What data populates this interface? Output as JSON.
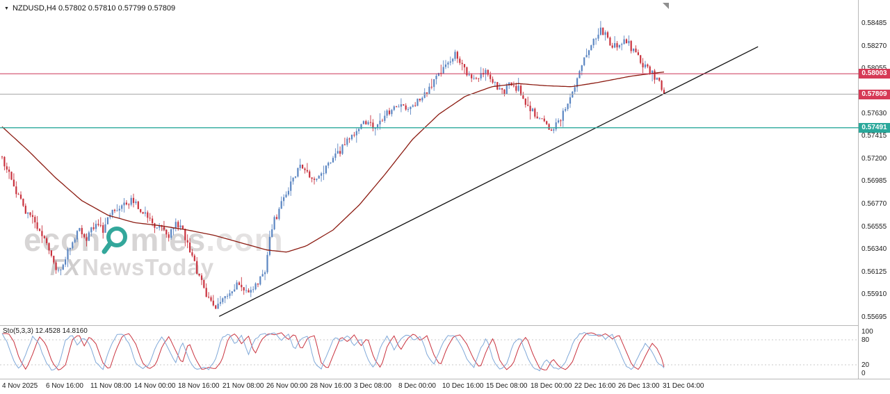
{
  "symbol_info": {
    "text": "NZDUSD,H4 0.57802 0.57810 0.57799 0.57809"
  },
  "indicator_label": "Sto(5,3,3) 12.4528 14.8160",
  "watermark": {
    "line1_pre": "econ",
    "line1_post": "mies",
    "line1_suffix": ".com",
    "line2_pre": "FX",
    "line2_post": "NewsToday",
    "magnifier_color": "#33a79b"
  },
  "price_axis": {
    "labels": [
      {
        "text": "0.58485",
        "value": 0.58485
      },
      {
        "text": "0.58270",
        "value": 0.5827
      },
      {
        "text": "0.58055",
        "value": 0.58055
      },
      {
        "text": "0.57630",
        "value": 0.5763
      },
      {
        "text": "0.57415",
        "value": 0.57415
      },
      {
        "text": "0.57200",
        "value": 0.572
      },
      {
        "text": "0.56985",
        "value": 0.56985
      },
      {
        "text": "0.56770",
        "value": 0.5677
      },
      {
        "text": "0.56555",
        "value": 0.56555
      },
      {
        "text": "0.56340",
        "value": 0.5634
      },
      {
        "text": "0.56125",
        "value": 0.56125
      },
      {
        "text": "0.55910",
        "value": 0.5591
      },
      {
        "text": "0.55695",
        "value": 0.55695
      }
    ],
    "badges": [
      {
        "text": "0.58003",
        "value": 0.58003,
        "color": "#d63a56"
      },
      {
        "text": "0.57809",
        "value": 0.57809,
        "color": "#d63a56"
      },
      {
        "text": "0.57491",
        "value": 0.57491,
        "color": "#2aa89b"
      }
    ]
  },
  "sto_axis_labels": [
    {
      "text": "100",
      "value": 100
    },
    {
      "text": "80",
      "value": 80
    },
    {
      "text": "20",
      "value": 20
    },
    {
      "text": "0",
      "value": 0
    }
  ],
  "time_axis": {
    "labels": [
      "4 Nov 2025",
      "6 Nov 16:00",
      "11 Nov 08:00",
      "14 Nov 00:00",
      "18 Nov 16:00",
      "21 Nov 08:00",
      "26 Nov 00:00",
      "28 Nov 16:00",
      "3 Dec 08:00",
      "8 Dec 00:00",
      "10 Dec 16:00",
      "15 Dec 08:00",
      "18 Dec 00:00",
      "22 Dec 16:00",
      "26 Dec 13:00",
      "31 Dec 04:00"
    ]
  },
  "chart_data": {
    "type": "candlestick",
    "title": "NZDUSD,H4",
    "open": 0.57802,
    "high": 0.5781,
    "low": 0.57799,
    "close": 0.57809,
    "ylim": [
      0.55603,
      0.58703
    ],
    "bars": 283,
    "colors": {
      "up": "#5b86c2",
      "down": "#c9323e",
      "ma": "#8b1a10",
      "trendline": "#111111"
    },
    "price_path_anchors": [
      [
        0.0,
        0.5718
      ],
      [
        0.01,
        0.5706
      ],
      [
        0.022,
        0.5688
      ],
      [
        0.035,
        0.5668
      ],
      [
        0.048,
        0.566
      ],
      [
        0.06,
        0.5648
      ],
      [
        0.072,
        0.563
      ],
      [
        0.082,
        0.5612
      ],
      [
        0.092,
        0.562
      ],
      [
        0.103,
        0.5638
      ],
      [
        0.115,
        0.5652
      ],
      [
        0.128,
        0.5645
      ],
      [
        0.14,
        0.5658
      ],
      [
        0.152,
        0.5652
      ],
      [
        0.165,
        0.5668
      ],
      [
        0.18,
        0.5675
      ],
      [
        0.195,
        0.568
      ],
      [
        0.21,
        0.5672
      ],
      [
        0.225,
        0.566
      ],
      [
        0.24,
        0.5652
      ],
      [
        0.252,
        0.5648
      ],
      [
        0.262,
        0.566
      ],
      [
        0.272,
        0.5652
      ],
      [
        0.285,
        0.563
      ],
      [
        0.298,
        0.5606
      ],
      [
        0.31,
        0.559
      ],
      [
        0.322,
        0.5576
      ],
      [
        0.335,
        0.5585
      ],
      [
        0.348,
        0.5596
      ],
      [
        0.36,
        0.5601
      ],
      [
        0.372,
        0.5594
      ],
      [
        0.385,
        0.56
      ],
      [
        0.398,
        0.5612
      ],
      [
        0.405,
        0.5652
      ],
      [
        0.415,
        0.5666
      ],
      [
        0.428,
        0.5685
      ],
      [
        0.44,
        0.5703
      ],
      [
        0.452,
        0.5715
      ],
      [
        0.462,
        0.5706
      ],
      [
        0.472,
        0.5696
      ],
      [
        0.485,
        0.5706
      ],
      [
        0.498,
        0.5718
      ],
      [
        0.512,
        0.5728
      ],
      [
        0.525,
        0.574
      ],
      [
        0.538,
        0.575
      ],
      [
        0.55,
        0.5756
      ],
      [
        0.562,
        0.5747
      ],
      [
        0.575,
        0.5758
      ],
      [
        0.588,
        0.5766
      ],
      [
        0.6,
        0.5772
      ],
      [
        0.612,
        0.5763
      ],
      [
        0.625,
        0.5773
      ],
      [
        0.638,
        0.5782
      ],
      [
        0.65,
        0.579
      ],
      [
        0.662,
        0.58
      ],
      [
        0.674,
        0.5812
      ],
      [
        0.685,
        0.582
      ],
      [
        0.695,
        0.581
      ],
      [
        0.706,
        0.5798
      ],
      [
        0.718,
        0.5794
      ],
      [
        0.73,
        0.5806
      ],
      [
        0.742,
        0.5794
      ],
      [
        0.755,
        0.5782
      ],
      [
        0.768,
        0.579
      ],
      [
        0.78,
        0.5786
      ],
      [
        0.792,
        0.5772
      ],
      [
        0.805,
        0.5763
      ],
      [
        0.818,
        0.5754
      ],
      [
        0.83,
        0.5747
      ],
      [
        0.842,
        0.5756
      ],
      [
        0.855,
        0.5772
      ],
      [
        0.868,
        0.5792
      ],
      [
        0.88,
        0.5815
      ],
      [
        0.892,
        0.5832
      ],
      [
        0.905,
        0.5843
      ],
      [
        0.918,
        0.583
      ],
      [
        0.93,
        0.5824
      ],
      [
        0.942,
        0.5833
      ],
      [
        0.955,
        0.582
      ],
      [
        0.968,
        0.5809
      ],
      [
        0.98,
        0.5802
      ],
      [
        0.99,
        0.5795
      ],
      [
        1.0,
        0.5781
      ]
    ],
    "ma_anchors": [
      [
        0.0,
        0.575
      ],
      [
        0.04,
        0.5727
      ],
      [
        0.08,
        0.5702
      ],
      [
        0.12,
        0.568
      ],
      [
        0.16,
        0.5666
      ],
      [
        0.2,
        0.5659
      ],
      [
        0.24,
        0.5656
      ],
      [
        0.28,
        0.5652
      ],
      [
        0.32,
        0.5647
      ],
      [
        0.36,
        0.564
      ],
      [
        0.4,
        0.5633
      ],
      [
        0.43,
        0.5631
      ],
      [
        0.46,
        0.5637
      ],
      [
        0.5,
        0.5652
      ],
      [
        0.54,
        0.5676
      ],
      [
        0.58,
        0.5706
      ],
      [
        0.62,
        0.5738
      ],
      [
        0.66,
        0.5762
      ],
      [
        0.7,
        0.5779
      ],
      [
        0.74,
        0.5788
      ],
      [
        0.78,
        0.5791
      ],
      [
        0.82,
        0.5789
      ],
      [
        0.86,
        0.5788
      ],
      [
        0.9,
        0.5792
      ],
      [
        0.95,
        0.5798
      ],
      [
        1.0,
        0.5802
      ]
    ],
    "trendline": {
      "x1_frac": 0.255,
      "price1": 0.557,
      "x2_frac": 0.882,
      "price2": 0.5826
    },
    "hlines": [
      {
        "price": 0.58003,
        "color": "#cc3355",
        "width": 1
      },
      {
        "price": 0.57491,
        "color": "#2aa89b",
        "width": 1.4
      },
      {
        "price": 0.57809,
        "color": "#a8a8a8",
        "width": 1
      }
    ],
    "stochastic": {
      "name": "Sto(5,3,3)",
      "main_value": 12.4528,
      "signal_value": 14.816,
      "range": [
        0,
        100
      ],
      "levels": [
        80,
        20
      ],
      "main_color": "#7fa8d8",
      "signal_color": "#c9323e",
      "anchors": [
        [
          0.0,
          95
        ],
        [
          0.008,
          75
        ],
        [
          0.016,
          35
        ],
        [
          0.026,
          8
        ],
        [
          0.036,
          45
        ],
        [
          0.046,
          88
        ],
        [
          0.056,
          70
        ],
        [
          0.066,
          25
        ],
        [
          0.076,
          6
        ],
        [
          0.086,
          20
        ],
        [
          0.096,
          80
        ],
        [
          0.106,
          93
        ],
        [
          0.114,
          65
        ],
        [
          0.122,
          88
        ],
        [
          0.132,
          70
        ],
        [
          0.142,
          25
        ],
        [
          0.152,
          8
        ],
        [
          0.162,
          55
        ],
        [
          0.172,
          90
        ],
        [
          0.182,
          95
        ],
        [
          0.192,
          70
        ],
        [
          0.202,
          25
        ],
        [
          0.212,
          10
        ],
        [
          0.222,
          20
        ],
        [
          0.232,
          65
        ],
        [
          0.242,
          88
        ],
        [
          0.252,
          55
        ],
        [
          0.262,
          22
        ],
        [
          0.272,
          75
        ],
        [
          0.282,
          35
        ],
        [
          0.292,
          8
        ],
        [
          0.302,
          14
        ],
        [
          0.312,
          10
        ],
        [
          0.322,
          30
        ],
        [
          0.332,
          85
        ],
        [
          0.342,
          95
        ],
        [
          0.352,
          70
        ],
        [
          0.362,
          90
        ],
        [
          0.372,
          45
        ],
        [
          0.382,
          80
        ],
        [
          0.392,
          95
        ],
        [
          0.402,
          92
        ],
        [
          0.412,
          97
        ],
        [
          0.422,
          80
        ],
        [
          0.432,
          95
        ],
        [
          0.442,
          55
        ],
        [
          0.452,
          85
        ],
        [
          0.462,
          90
        ],
        [
          0.472,
          25
        ],
        [
          0.482,
          10
        ],
        [
          0.492,
          50
        ],
        [
          0.502,
          88
        ],
        [
          0.512,
          75
        ],
        [
          0.522,
          92
        ],
        [
          0.532,
          65
        ],
        [
          0.542,
          85
        ],
        [
          0.552,
          35
        ],
        [
          0.562,
          12
        ],
        [
          0.572,
          65
        ],
        [
          0.582,
          90
        ],
        [
          0.592,
          55
        ],
        [
          0.602,
          82
        ],
        [
          0.612,
          95
        ],
        [
          0.622,
          78
        ],
        [
          0.632,
          90
        ],
        [
          0.642,
          45
        ],
        [
          0.652,
          18
        ],
        [
          0.662,
          60
        ],
        [
          0.672,
          88
        ],
        [
          0.682,
          92
        ],
        [
          0.692,
          70
        ],
        [
          0.702,
          35
        ],
        [
          0.712,
          12
        ],
        [
          0.722,
          55
        ],
        [
          0.732,
          85
        ],
        [
          0.742,
          30
        ],
        [
          0.752,
          8
        ],
        [
          0.762,
          22
        ],
        [
          0.772,
          68
        ],
        [
          0.782,
          88
        ],
        [
          0.792,
          45
        ],
        [
          0.802,
          12
        ],
        [
          0.812,
          6
        ],
        [
          0.822,
          35
        ],
        [
          0.832,
          15
        ],
        [
          0.842,
          8
        ],
        [
          0.852,
          28
        ],
        [
          0.862,
          72
        ],
        [
          0.872,
          95
        ],
        [
          0.882,
          97
        ],
        [
          0.892,
          88
        ],
        [
          0.902,
          95
        ],
        [
          0.912,
          82
        ],
        [
          0.922,
          92
        ],
        [
          0.932,
          55
        ],
        [
          0.942,
          18
        ],
        [
          0.952,
          8
        ],
        [
          0.962,
          42
        ],
        [
          0.972,
          72
        ],
        [
          0.98,
          58
        ],
        [
          0.988,
          30
        ],
        [
          1.0,
          12.5
        ]
      ]
    }
  }
}
